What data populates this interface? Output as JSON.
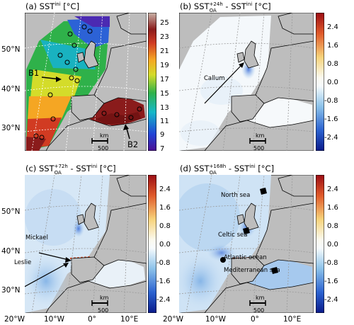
{
  "panels": {
    "a": {
      "title_pre": "(a) SST",
      "title_sup": "ini",
      "title_post": " [°C]",
      "colorbar_ticks": [
        "25",
        "23",
        "21",
        "19",
        "17",
        "15",
        "13",
        "11",
        "9",
        "7"
      ],
      "colormap": "temperature-jet",
      "labels": {
        "b1": "B1",
        "b2": "B2"
      }
    },
    "b": {
      "title_pre": "(b) SST",
      "title_sup": "+24h",
      "title_sub": "OA",
      "title_mid": " - SST",
      "title_sup2": "ini",
      "title_post": " [°C]",
      "colorbar_ticks": [
        "2.4",
        "1.6",
        "0.8",
        "0.0",
        "-0.8",
        "-1.6",
        "-2.4"
      ],
      "colormap": "diverging-blue-red",
      "labels": {
        "storm": "Callum"
      }
    },
    "c": {
      "title_pre": "(c) SST",
      "title_sup": "+72h",
      "title_sub": "OA",
      "title_mid": " - SST",
      "title_sup2": "ini",
      "title_post": " [°C]",
      "colorbar_ticks": [
        "2.4",
        "1.6",
        "0.8",
        "0.0",
        "-0.8",
        "-1.6",
        "-2.4"
      ],
      "colormap": "diverging-blue-red",
      "labels": {
        "storm1": "Mickael",
        "storm2": "Leslie"
      }
    },
    "d": {
      "title_pre": "(d) SST",
      "title_sup": "+168h",
      "title_sub": "OA",
      "title_mid": " - SST",
      "title_sup2": "ini",
      "title_post": " [°C]",
      "colorbar_ticks": [
        "2.4",
        "1.6",
        "0.8",
        "0.0",
        "-0.8",
        "-1.6",
        "-2.4"
      ],
      "colormap": "diverging-blue-red",
      "labels": {
        "north_sea": "North sea",
        "celtic_sea": "Celtic sea",
        "atlantic": "Atlantic ocean",
        "med": "Mediterranean sea"
      }
    }
  },
  "lat_labels": [
    "50°N",
    "40°N",
    "30°N"
  ],
  "lon_labels": [
    "20°W",
    "10°W",
    "0°",
    "10°E"
  ],
  "scalebar": {
    "unit": "km",
    "value": "500"
  },
  "colors": {
    "land": "#bdbdbd",
    "ocean_zero": "#f4f8fb",
    "coast": "#000000"
  }
}
